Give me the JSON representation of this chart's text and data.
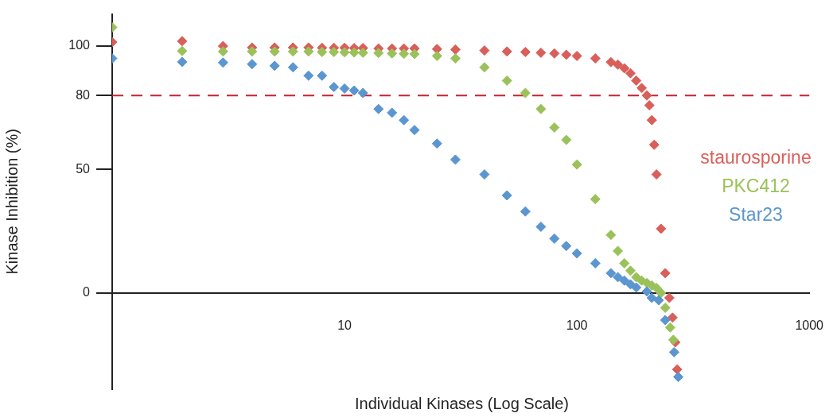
{
  "chart_data": {
    "type": "scatter",
    "xlabel": "Individual Kinases (Log Scale)",
    "ylabel": "Kinase Inhibition (%)",
    "log": "x",
    "xlim": [
      1,
      1000
    ],
    "xticks": [
      10,
      100,
      1000
    ],
    "ylim": [
      -39,
      113
    ],
    "yticks": [
      0,
      50,
      80,
      100
    ],
    "grid": false,
    "legend": "right",
    "marker": "diamond",
    "series": [
      {
        "name": "staurosporine",
        "color": "#d95f5a",
        "x": [
          1,
          2,
          3,
          4,
          5,
          6,
          7,
          8,
          9,
          10,
          11,
          12,
          14,
          16,
          18,
          20,
          25,
          30,
          40,
          50,
          60,
          70,
          80,
          90,
          100,
          120,
          140,
          150,
          160,
          170,
          180,
          190,
          200,
          205,
          210,
          215,
          220,
          230,
          240,
          250,
          258,
          265,
          270
        ],
        "values": [
          101.6,
          102,
          100,
          99.4,
          99.4,
          99.4,
          99.4,
          99.3,
          99.3,
          99.3,
          99.2,
          99.2,
          99,
          99,
          99,
          99,
          98.8,
          98.6,
          98.2,
          97.8,
          97.6,
          97.3,
          97,
          96.5,
          96,
          95,
          93.5,
          92.5,
          91,
          89,
          86,
          83,
          80,
          76,
          70,
          60,
          48,
          26,
          8,
          -2,
          -10,
          -20,
          -31
        ]
      },
      {
        "name": "PKC412",
        "color": "#9bc25a",
        "x": [
          1,
          2,
          3,
          4,
          5,
          6,
          7,
          8,
          9,
          10,
          11,
          12,
          14,
          16,
          18,
          20,
          25,
          30,
          40,
          50,
          60,
          70,
          80,
          90,
          100,
          120,
          140,
          150,
          160,
          170,
          180,
          190,
          200,
          210,
          220,
          230,
          240,
          252,
          260
        ],
        "values": [
          107.6,
          98,
          97.8,
          97.8,
          97.8,
          97.8,
          97.8,
          97.6,
          97.6,
          97.5,
          97.4,
          97.3,
          97.2,
          97,
          96.9,
          96.8,
          96,
          95,
          91.4,
          86,
          81,
          74.5,
          67,
          62,
          52,
          38,
          23.5,
          17,
          12,
          9,
          6.4,
          5,
          4,
          3,
          2,
          0,
          -6,
          -14,
          -19
        ]
      },
      {
        "name": "Star23",
        "color": "#5b96d0",
        "x": [
          1,
          2,
          3,
          4,
          5,
          6,
          7,
          8,
          9,
          10,
          11,
          12,
          14,
          16,
          18,
          20,
          25,
          30,
          40,
          50,
          60,
          70,
          80,
          90,
          100,
          120,
          140,
          150,
          160,
          170,
          180,
          200,
          210,
          225,
          240,
          262,
          273
        ],
        "values": [
          95,
          93.6,
          93.3,
          92.7,
          92,
          91.4,
          88,
          88,
          83.4,
          82.8,
          82,
          81,
          74.5,
          73,
          70,
          66,
          60.5,
          54,
          48,
          39.5,
          33,
          26.8,
          22,
          19,
          16,
          12,
          8,
          6.4,
          5,
          3.5,
          2.2,
          0.6,
          -2,
          -3,
          -11,
          -24,
          -34
        ]
      }
    ],
    "ref_lines": [
      {
        "axis": "y",
        "value": 80,
        "color": "#c8202f",
        "line_style": "dashed"
      }
    ]
  }
}
